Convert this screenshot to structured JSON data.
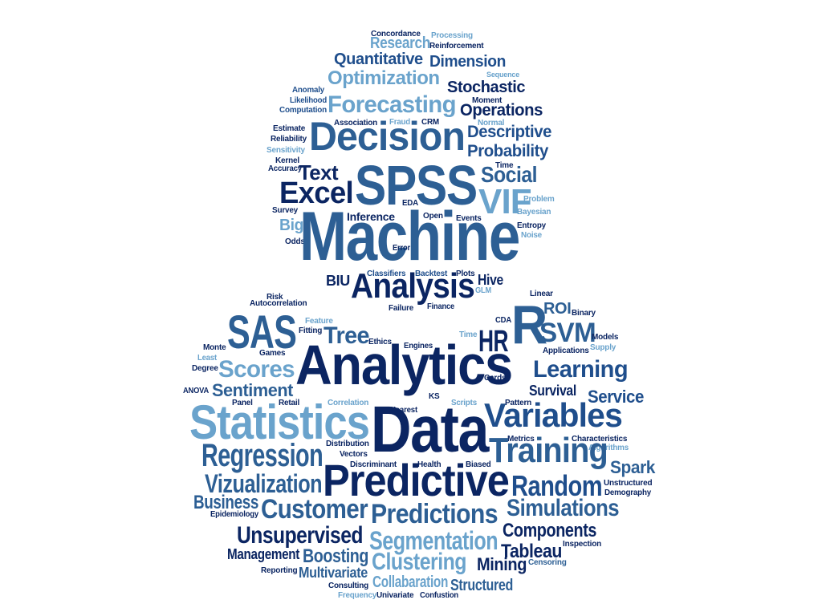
{
  "palette": {
    "navy": "#0b2562",
    "blue": "#1f4e8c",
    "mid": "#2d5f94",
    "light": "#6aa3cc",
    "sky": "#7fb2d6"
  },
  "words": [
    {
      "text": "Concordance",
      "color": "navy"
    },
    {
      "text": "Processing",
      "color": "light"
    },
    {
      "text": "Research",
      "color": "light"
    },
    {
      "text": "Reinforcement",
      "color": "navy"
    },
    {
      "text": "Quantitative",
      "color": "blue"
    },
    {
      "text": "Dimension",
      "color": "blue"
    },
    {
      "text": "Sequence",
      "color": "light"
    },
    {
      "text": "Optimization",
      "color": "light"
    },
    {
      "text": "Stochastic",
      "color": "navy"
    },
    {
      "text": "Anomaly",
      "color": "blue"
    },
    {
      "text": "Likelihood",
      "color": "blue"
    },
    {
      "text": "Computation",
      "color": "blue"
    },
    {
      "text": "Forecasting",
      "color": "light"
    },
    {
      "text": "Moment",
      "color": "navy"
    },
    {
      "text": "Operations",
      "color": "navy"
    },
    {
      "text": "Association",
      "color": "navy"
    },
    {
      "text": "Fraud",
      "color": "light"
    },
    {
      "text": "CRM",
      "color": "navy"
    },
    {
      "text": "Normal",
      "color": "light"
    },
    {
      "text": "Estimate",
      "color": "navy"
    },
    {
      "text": "Reliability",
      "color": "navy"
    },
    {
      "text": "Decision",
      "color": "mid"
    },
    {
      "text": "Descriptive",
      "color": "blue"
    },
    {
      "text": "Probability",
      "color": "blue"
    },
    {
      "text": "Sensitivity",
      "color": "light"
    },
    {
      "text": "Kernel",
      "color": "navy"
    },
    {
      "text": "Accuracy",
      "color": "navy"
    },
    {
      "text": "Time",
      "color": "navy"
    },
    {
      "text": "Text",
      "color": "navy"
    },
    {
      "text": "Social",
      "color": "mid"
    },
    {
      "text": "Excel",
      "color": "navy"
    },
    {
      "text": "SPSS",
      "color": "mid"
    },
    {
      "text": "VIF",
      "color": "light"
    },
    {
      "text": "Problem",
      "color": "light"
    },
    {
      "text": "Bayesian",
      "color": "light"
    },
    {
      "text": "Survey",
      "color": "navy"
    },
    {
      "text": "EDA",
      "color": "navy"
    },
    {
      "text": "Inference",
      "color": "navy"
    },
    {
      "text": "Open",
      "color": "navy"
    },
    {
      "text": "Events",
      "color": "navy"
    },
    {
      "text": "Entropy",
      "color": "navy"
    },
    {
      "text": "Noise",
      "color": "light"
    },
    {
      "text": "Big",
      "color": "light"
    },
    {
      "text": "Odds",
      "color": "navy"
    },
    {
      "text": "Machine",
      "color": "mid"
    },
    {
      "text": "Error",
      "color": "navy"
    },
    {
      "text": "Classifiers",
      "color": "blue"
    },
    {
      "text": "Backtest",
      "color": "blue"
    },
    {
      "text": "Plots",
      "color": "navy"
    },
    {
      "text": "BIU",
      "color": "navy"
    },
    {
      "text": "Analysis",
      "color": "navy"
    },
    {
      "text": "Hive",
      "color": "navy"
    },
    {
      "text": "GLM",
      "color": "light"
    },
    {
      "text": "Risk",
      "color": "navy"
    },
    {
      "text": "Linear",
      "color": "navy"
    },
    {
      "text": "Autocorrelation",
      "color": "navy"
    },
    {
      "text": "Failure",
      "color": "navy"
    },
    {
      "text": "Finance",
      "color": "navy"
    },
    {
      "text": "ROI",
      "color": "mid"
    },
    {
      "text": "R",
      "color": "mid"
    },
    {
      "text": "Binary",
      "color": "navy"
    },
    {
      "text": "SAS",
      "color": "mid"
    },
    {
      "text": "Feature",
      "color": "light"
    },
    {
      "text": "CDA",
      "color": "navy"
    },
    {
      "text": "Fitting",
      "color": "navy"
    },
    {
      "text": "Tree",
      "color": "mid"
    },
    {
      "text": "SVM",
      "color": "mid"
    },
    {
      "text": "Time",
      "color": "light"
    },
    {
      "text": "Models",
      "color": "navy"
    },
    {
      "text": "Ethics",
      "color": "navy"
    },
    {
      "text": "Engines",
      "color": "navy"
    },
    {
      "text": "HR",
      "color": "navy"
    },
    {
      "text": "Supply",
      "color": "light"
    },
    {
      "text": "Monte",
      "color": "navy"
    },
    {
      "text": "Games",
      "color": "navy"
    },
    {
      "text": "Applications",
      "color": "navy"
    },
    {
      "text": "Least",
      "color": "light"
    },
    {
      "text": "Degree",
      "color": "navy"
    },
    {
      "text": "Scores",
      "color": "light"
    },
    {
      "text": "Analytics",
      "color": "navy"
    },
    {
      "text": "Learning",
      "color": "blue"
    },
    {
      "text": "Cards",
      "color": "navy"
    },
    {
      "text": "Sentiment",
      "color": "mid"
    },
    {
      "text": "Survival",
      "color": "navy"
    },
    {
      "text": "ANOVA",
      "color": "navy"
    },
    {
      "text": "Service",
      "color": "blue"
    },
    {
      "text": "Panel",
      "color": "navy"
    },
    {
      "text": "Retail",
      "color": "navy"
    },
    {
      "text": "Correlation",
      "color": "light"
    },
    {
      "text": "KS",
      "color": "navy"
    },
    {
      "text": "Scripts",
      "color": "light"
    },
    {
      "text": "Pattern",
      "color": "navy"
    },
    {
      "text": "Nearest",
      "color": "navy"
    },
    {
      "text": "Statistics",
      "color": "light"
    },
    {
      "text": "Data",
      "color": "navy"
    },
    {
      "text": "Variables",
      "color": "blue"
    },
    {
      "text": "Metrics",
      "color": "navy"
    },
    {
      "text": "Characteristics",
      "color": "navy"
    },
    {
      "text": "Algorithms",
      "color": "light"
    },
    {
      "text": "Distribution",
      "color": "navy"
    },
    {
      "text": "Regression",
      "color": "mid"
    },
    {
      "text": "Vectors",
      "color": "navy"
    },
    {
      "text": "Discriminant",
      "color": "navy"
    },
    {
      "text": "Health",
      "color": "navy"
    },
    {
      "text": "Biased",
      "color": "navy"
    },
    {
      "text": "Training",
      "color": "mid"
    },
    {
      "text": "Spark",
      "color": "mid"
    },
    {
      "text": "Predictive",
      "color": "navy"
    },
    {
      "text": "Unstructured",
      "color": "navy"
    },
    {
      "text": "Vizualization",
      "color": "mid"
    },
    {
      "text": "Random",
      "color": "blue"
    },
    {
      "text": "Demography",
      "color": "navy"
    },
    {
      "text": "Business",
      "color": "mid"
    },
    {
      "text": "Customer",
      "color": "mid"
    },
    {
      "text": "Predictions",
      "color": "mid"
    },
    {
      "text": "Simulations",
      "color": "mid"
    },
    {
      "text": "Epidemiology",
      "color": "navy"
    },
    {
      "text": "Unsupervised",
      "color": "navy"
    },
    {
      "text": "Segmentation",
      "color": "light"
    },
    {
      "text": "Components",
      "color": "navy"
    },
    {
      "text": "Management",
      "color": "navy"
    },
    {
      "text": "Boosting",
      "color": "mid"
    },
    {
      "text": "Tableau",
      "color": "navy"
    },
    {
      "text": "Inspection",
      "color": "navy"
    },
    {
      "text": "Clustering",
      "color": "light"
    },
    {
      "text": "Mining",
      "color": "navy"
    },
    {
      "text": "Censoring",
      "color": "mid"
    },
    {
      "text": "Reporting",
      "color": "navy"
    },
    {
      "text": "Multivariate",
      "color": "mid"
    },
    {
      "text": "Collabaration",
      "color": "light"
    },
    {
      "text": "Structured",
      "color": "mid"
    },
    {
      "text": "Consulting",
      "color": "navy"
    },
    {
      "text": "Frequency",
      "color": "light"
    },
    {
      "text": "Univariate",
      "color": "navy"
    },
    {
      "text": "Confustion",
      "color": "navy"
    }
  ]
}
